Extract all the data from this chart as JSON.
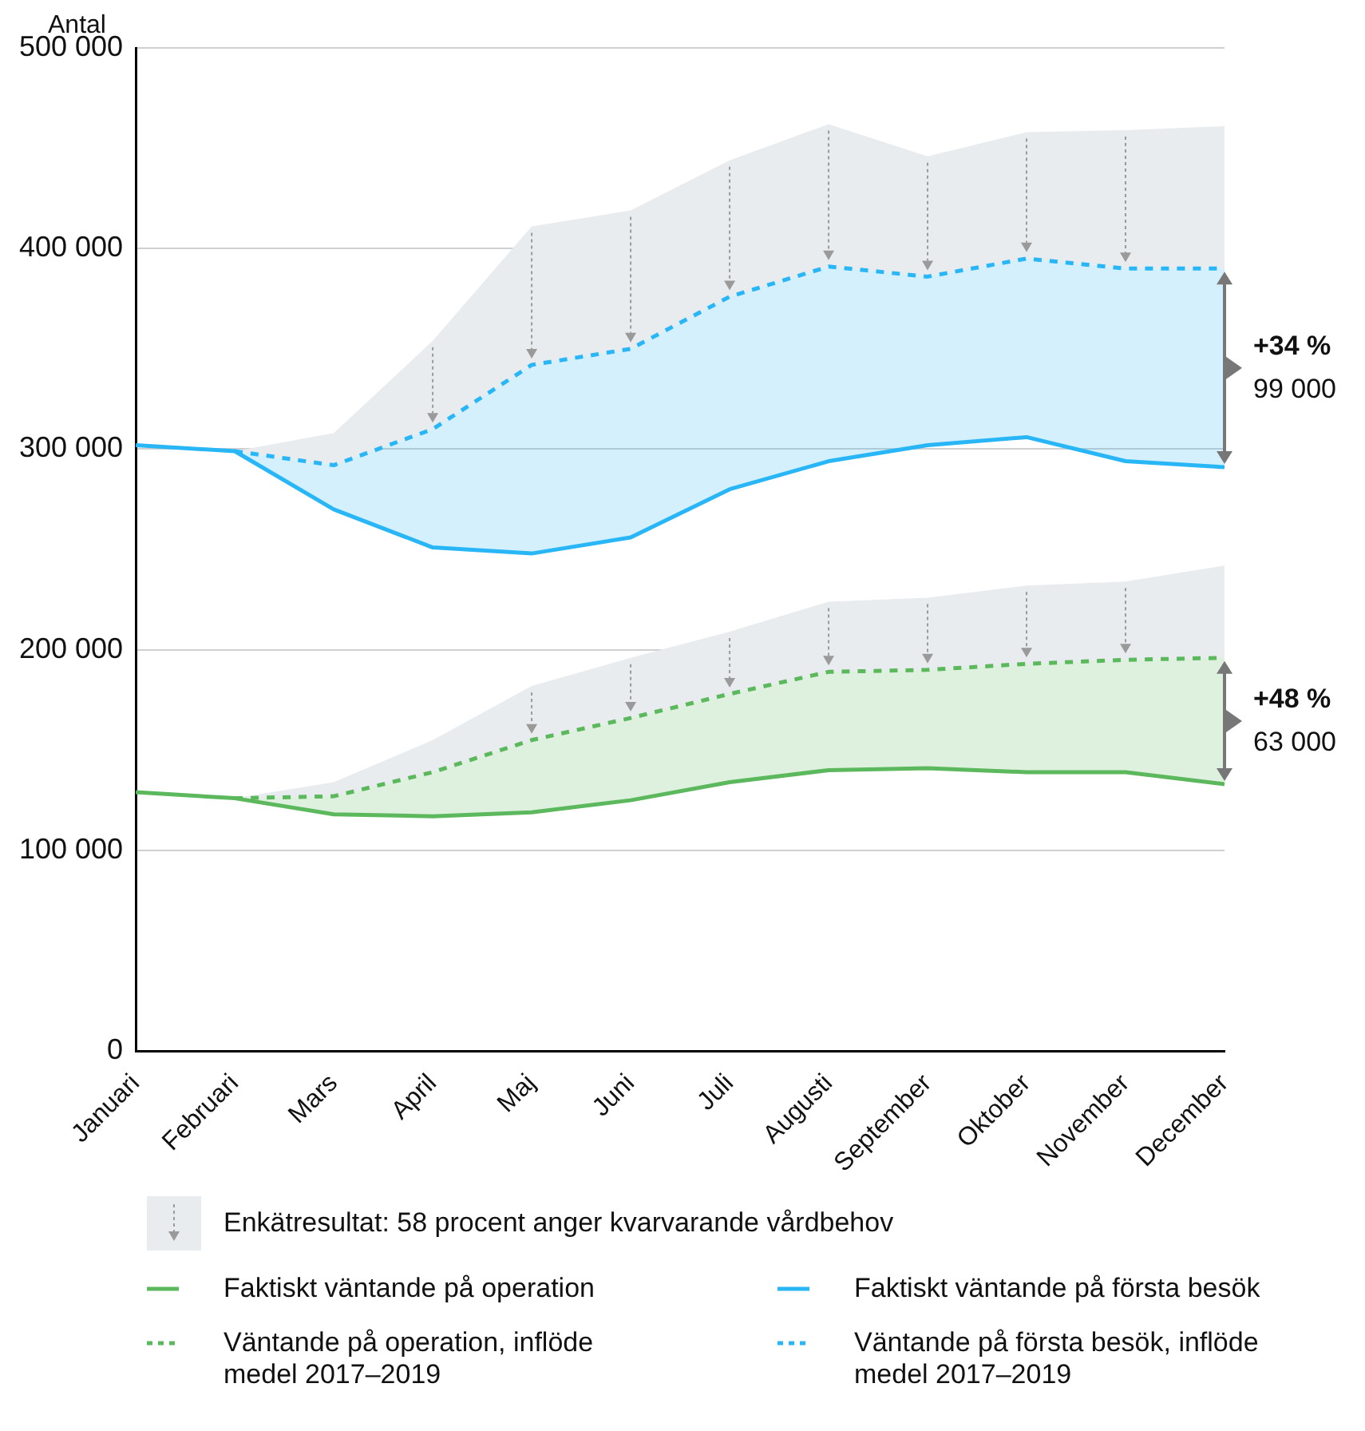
{
  "chart_data": {
    "type": "line",
    "ylabel": "Antal",
    "categories": [
      "Januari",
      "Februari",
      "Mars",
      "April",
      "Maj",
      "Juni",
      "Juli",
      "Augusti",
      "September",
      "Oktober",
      "November",
      "December"
    ],
    "ylim": [
      0,
      500000
    ],
    "yticks": [
      {
        "value": 0,
        "label": "0"
      },
      {
        "value": 100000,
        "label": "100 000"
      },
      {
        "value": 200000,
        "label": "200 000"
      },
      {
        "value": 300000,
        "label": "300 000"
      },
      {
        "value": 400000,
        "label": "400 000"
      },
      {
        "value": 500000,
        "label": "500 000"
      }
    ],
    "grid": "y",
    "legend": "bottom",
    "marker": "none",
    "series": [
      {
        "name": "Faktiskt väntande på operation",
        "color": "#5cb85c",
        "values": [
          129000,
          126000,
          118000,
          117000,
          119000,
          125000,
          134000,
          140000,
          141000,
          139000,
          139000,
          133000
        ]
      },
      {
        "type": "area",
        "name": "Väntande på operation, inflöde medel 2017–2019",
        "color": "#5cb85c",
        "line_style": "dashed",
        "values": [
          null,
          126000,
          127000,
          139000,
          155000,
          166000,
          178000,
          189000,
          190000,
          193000,
          195000,
          196000
        ]
      },
      {
        "type": "area",
        "color": "#e9ecef",
        "values": [
          null,
          126000,
          134000,
          155000,
          182000,
          196000,
          209000,
          224000,
          226000,
          232000,
          234000,
          242000
        ]
      },
      {
        "name": "Faktiskt väntande på första besök",
        "color": "#29b6f6",
        "values": [
          302000,
          299000,
          270000,
          251000,
          248000,
          256000,
          280000,
          294000,
          302000,
          306000,
          294000,
          291000
        ]
      },
      {
        "type": "area",
        "name": "Väntande på första besök, inflöde medel 2017–2019",
        "color": "#29b6f6",
        "line_style": "dashed",
        "values": [
          null,
          299000,
          292000,
          310000,
          342000,
          350000,
          376000,
          391000,
          386000,
          395000,
          390000,
          390000
        ]
      },
      {
        "type": "area",
        "name": "Enkätresultat: 58 procent anger kvarvarande vårdbehov",
        "color": "#e9ecef",
        "values": [
          null,
          299000,
          308000,
          354000,
          411000,
          419000,
          444000,
          462000,
          446000,
          458000,
          459000,
          461000
        ]
      }
    ],
    "annotations": [
      "+34 %",
      "99 000",
      "+48 %",
      "63 000"
    ]
  }
}
